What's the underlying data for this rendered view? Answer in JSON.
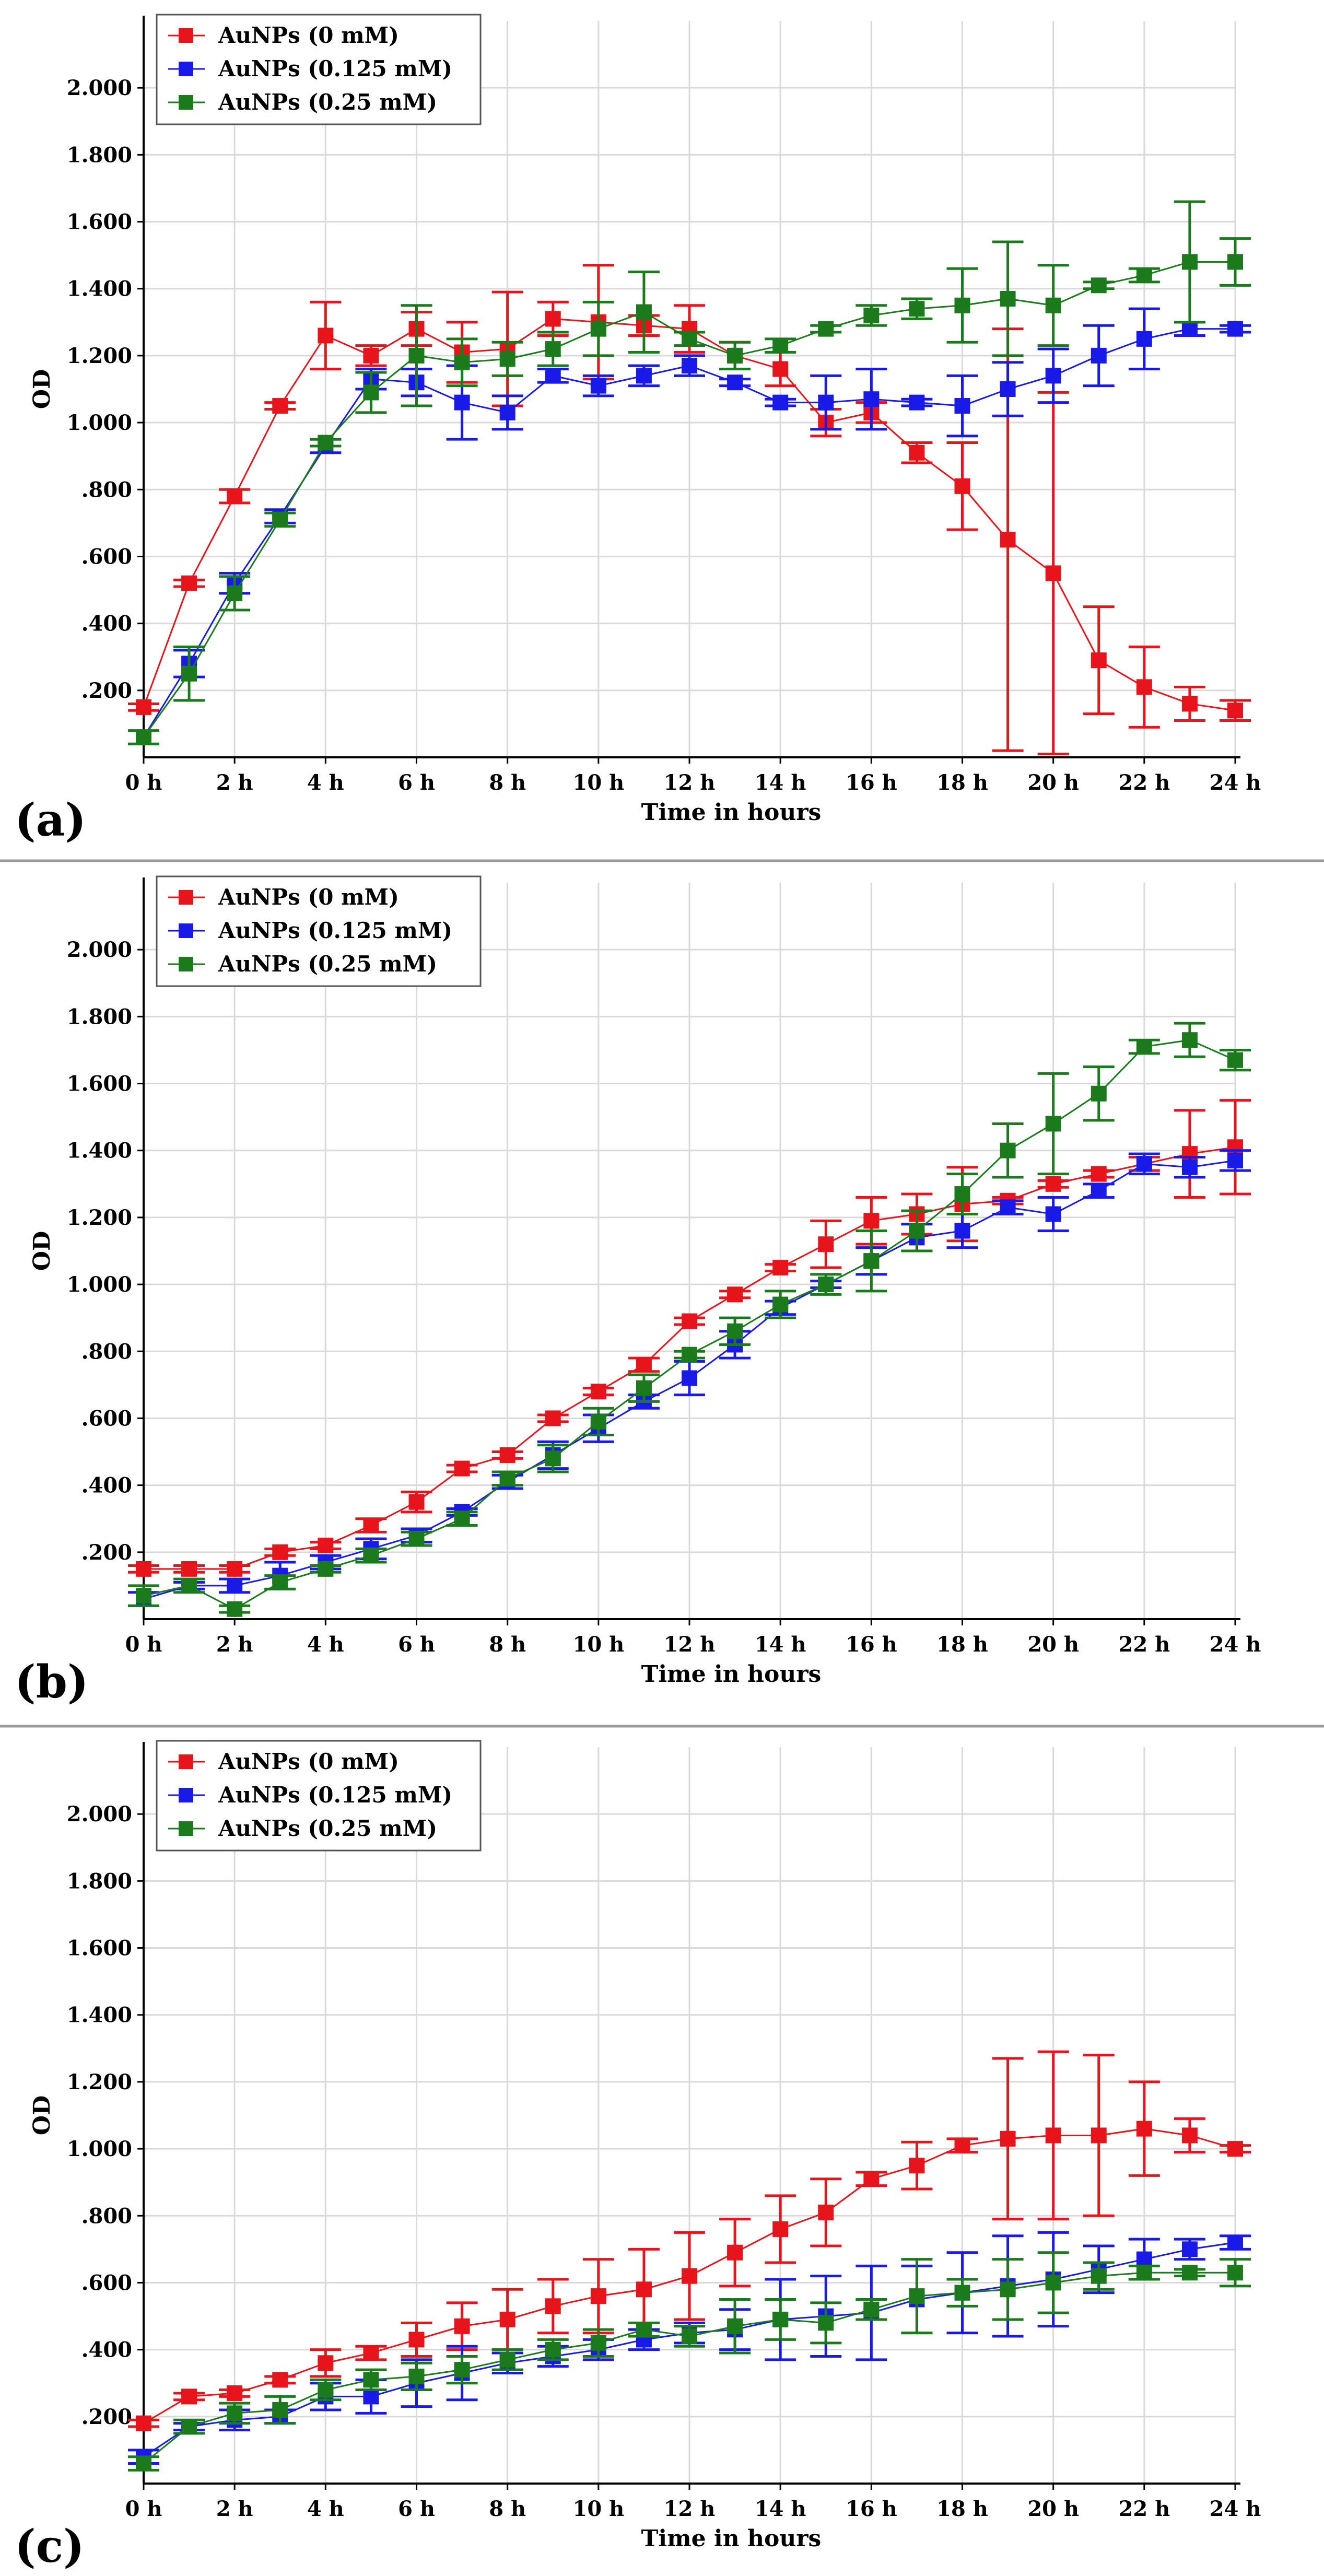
{
  "colors": {
    "s0": "#e8141b",
    "s1": "#1a1ae8",
    "s2": "#1b7a1b",
    "grid": "#d9d9d9",
    "axis": "#000000",
    "separator": "#9a9a9a"
  },
  "chart_data": [
    {
      "type": "line",
      "panel_label": "(a)",
      "xlabel": "Time in hours",
      "ylabel": "OD",
      "ylim": [
        0,
        2.2
      ],
      "yticks": [
        0.2,
        0.4,
        0.6,
        0.8,
        1.0,
        1.2,
        1.4,
        1.6,
        1.8,
        2.0
      ],
      "ytick_labels": [
        ".200",
        ".400",
        ".600",
        ".800",
        "1.000",
        "1.200",
        "1.400",
        "1.600",
        "1.800",
        "2.000"
      ],
      "xticks": [
        0,
        2,
        4,
        6,
        8,
        10,
        12,
        14,
        16,
        18,
        20,
        22,
        24
      ],
      "xtick_labels": [
        "0 h",
        "2 h",
        "4 h",
        "6 h",
        "8 h",
        "10 h",
        "12 h",
        "14 h",
        "16 h",
        "18 h",
        "20 h",
        "22 h",
        "24 h"
      ],
      "legend_position": "top-left",
      "x": [
        0,
        1,
        2,
        3,
        4,
        5,
        6,
        7,
        8,
        9,
        10,
        11,
        12,
        13,
        14,
        15,
        16,
        17,
        18,
        19,
        20,
        21,
        22,
        23,
        24
      ],
      "series": [
        {
          "name": "AuNPs (0 mM)",
          "values": [
            0.15,
            0.52,
            0.78,
            1.05,
            1.26,
            1.2,
            1.28,
            1.21,
            1.22,
            1.31,
            1.3,
            1.29,
            1.28,
            1.2,
            1.16,
            1.0,
            1.03,
            0.91,
            0.81,
            0.65,
            0.55,
            0.29,
            0.21,
            0.16,
            0.14
          ],
          "errors": [
            0.01,
            0.01,
            0.02,
            0.01,
            0.1,
            0.03,
            0.05,
            0.09,
            0.17,
            0.05,
            0.17,
            0.03,
            0.07,
            0.04,
            0.05,
            0.04,
            0.03,
            0.03,
            0.13,
            0.63,
            0.54,
            0.16,
            0.12,
            0.05,
            0.03
          ]
        },
        {
          "name": "AuNPs (0.125 mM)",
          "values": [
            0.06,
            0.28,
            0.52,
            0.72,
            0.93,
            1.13,
            1.12,
            1.06,
            1.03,
            1.14,
            1.11,
            1.14,
            1.17,
            1.12,
            1.06,
            1.06,
            1.07,
            1.06,
            1.05,
            1.1,
            1.14,
            1.2,
            1.25,
            1.28,
            1.28
          ],
          "errors": [
            0.02,
            0.04,
            0.03,
            0.02,
            0.02,
            0.03,
            0.04,
            0.11,
            0.05,
            0.02,
            0.03,
            0.03,
            0.03,
            0.01,
            0.01,
            0.08,
            0.09,
            0.01,
            0.09,
            0.08,
            0.08,
            0.09,
            0.09,
            0.02,
            0.01
          ]
        },
        {
          "name": "AuNPs (0.25 mM)",
          "values": [
            0.06,
            0.25,
            0.49,
            0.71,
            0.94,
            1.09,
            1.2,
            1.18,
            1.19,
            1.22,
            1.28,
            1.33,
            1.25,
            1.2,
            1.23,
            1.28,
            1.32,
            1.34,
            1.35,
            1.37,
            1.35,
            1.41,
            1.44,
            1.48,
            1.48
          ],
          "errors": [
            0.02,
            0.08,
            0.05,
            0.02,
            0.01,
            0.06,
            0.15,
            0.07,
            0.05,
            0.05,
            0.08,
            0.12,
            0.02,
            0.04,
            0.02,
            0.01,
            0.03,
            0.03,
            0.11,
            0.17,
            0.12,
            0.01,
            0.02,
            0.18,
            0.07
          ]
        }
      ]
    },
    {
      "type": "line",
      "panel_label": "(b)",
      "xlabel": "Time in hours",
      "ylabel": "OD",
      "ylim": [
        0,
        2.2
      ],
      "yticks": [
        0.2,
        0.4,
        0.6,
        0.8,
        1.0,
        1.2,
        1.4,
        1.6,
        1.8,
        2.0
      ],
      "ytick_labels": [
        ".200",
        ".400",
        ".600",
        ".800",
        "1.000",
        "1.200",
        "1.400",
        "1.600",
        "1.800",
        "2.000"
      ],
      "xticks": [
        0,
        2,
        4,
        6,
        8,
        10,
        12,
        14,
        16,
        18,
        20,
        22,
        24
      ],
      "xtick_labels": [
        "0 h",
        "2 h",
        "4 h",
        "6 h",
        "8 h",
        "10 h",
        "12 h",
        "14 h",
        "16 h",
        "18 h",
        "20 h",
        "22 h",
        "24 h"
      ],
      "legend_position": "top-left",
      "x": [
        0,
        1,
        2,
        3,
        4,
        5,
        6,
        7,
        8,
        9,
        10,
        11,
        12,
        13,
        14,
        15,
        16,
        17,
        18,
        19,
        20,
        21,
        22,
        23,
        24
      ],
      "series": [
        {
          "name": "AuNPs (0 mM)",
          "values": [
            0.15,
            0.15,
            0.15,
            0.2,
            0.22,
            0.28,
            0.35,
            0.45,
            0.49,
            0.6,
            0.68,
            0.76,
            0.89,
            0.97,
            1.05,
            1.12,
            1.19,
            1.21,
            1.24,
            1.25,
            1.3,
            1.33,
            1.36,
            1.39,
            1.41
          ],
          "errors": [
            0.01,
            0.01,
            0.01,
            0.01,
            0.01,
            0.02,
            0.03,
            0.01,
            0.01,
            0.01,
            0.01,
            0.02,
            0.01,
            0.01,
            0.01,
            0.07,
            0.07,
            0.06,
            0.11,
            0.01,
            0.01,
            0.01,
            0.02,
            0.13,
            0.14
          ]
        },
        {
          "name": "AuNPs (0.125 mM)",
          "values": [
            0.06,
            0.1,
            0.1,
            0.13,
            0.17,
            0.21,
            0.25,
            0.32,
            0.41,
            0.49,
            0.57,
            0.65,
            0.72,
            0.82,
            0.93,
            1.0,
            1.07,
            1.14,
            1.16,
            1.23,
            1.21,
            1.28,
            1.36,
            1.35,
            1.37
          ],
          "errors": [
            0.02,
            0.01,
            0.02,
            0.04,
            0.02,
            0.03,
            0.02,
            0.01,
            0.02,
            0.04,
            0.04,
            0.02,
            0.05,
            0.04,
            0.02,
            0.01,
            0.04,
            0.04,
            0.05,
            0.02,
            0.05,
            0.02,
            0.03,
            0.03,
            0.03
          ]
        },
        {
          "name": "AuNPs (0.25 mM)",
          "values": [
            0.07,
            0.1,
            0.03,
            0.11,
            0.15,
            0.19,
            0.24,
            0.3,
            0.42,
            0.48,
            0.59,
            0.69,
            0.79,
            0.86,
            0.94,
            1.0,
            1.07,
            1.16,
            1.27,
            1.4,
            1.48,
            1.57,
            1.71,
            1.73,
            1.67
          ],
          "errors": [
            0.03,
            0.02,
            0.01,
            0.02,
            0.01,
            0.02,
            0.02,
            0.02,
            0.02,
            0.04,
            0.04,
            0.04,
            0.01,
            0.04,
            0.04,
            0.03,
            0.09,
            0.06,
            0.06,
            0.08,
            0.15,
            0.08,
            0.02,
            0.05,
            0.03
          ]
        }
      ]
    },
    {
      "type": "line",
      "panel_label": "(c)",
      "xlabel": "Time in hours",
      "ylabel": "OD",
      "ylim": [
        0,
        2.2
      ],
      "yticks": [
        0.2,
        0.4,
        0.6,
        0.8,
        1.0,
        1.2,
        1.4,
        1.6,
        1.8,
        2.0
      ],
      "ytick_labels": [
        ".200",
        ".400",
        ".600",
        ".800",
        "1.000",
        "1.200",
        "1.400",
        "1.600",
        "1.800",
        "2.000"
      ],
      "xticks": [
        0,
        2,
        4,
        6,
        8,
        10,
        12,
        14,
        16,
        18,
        20,
        22,
        24
      ],
      "xtick_labels": [
        "0 h",
        "2 h",
        "4 h",
        "6 h",
        "8 h",
        "10 h",
        "12 h",
        "14 h",
        "16 h",
        "18 h",
        "20 h",
        "22 h",
        "24 h"
      ],
      "legend_position": "top-left",
      "x": [
        0,
        1,
        2,
        3,
        4,
        5,
        6,
        7,
        8,
        9,
        10,
        11,
        12,
        13,
        14,
        15,
        16,
        17,
        18,
        19,
        20,
        21,
        22,
        23,
        24
      ],
      "series": [
        {
          "name": "AuNPs (0 mM)",
          "values": [
            0.18,
            0.26,
            0.27,
            0.31,
            0.36,
            0.39,
            0.43,
            0.47,
            0.49,
            0.53,
            0.56,
            0.58,
            0.62,
            0.69,
            0.76,
            0.81,
            0.91,
            0.95,
            1.01,
            1.03,
            1.04,
            1.04,
            1.06,
            1.04,
            1.0
          ],
          "errors": [
            0.01,
            0.01,
            0.01,
            0.01,
            0.04,
            0.02,
            0.05,
            0.07,
            0.09,
            0.08,
            0.11,
            0.12,
            0.13,
            0.1,
            0.1,
            0.1,
            0.02,
            0.07,
            0.02,
            0.24,
            0.25,
            0.24,
            0.14,
            0.05,
            0.01
          ]
        },
        {
          "name": "AuNPs (0.125 mM)",
          "values": [
            0.08,
            0.17,
            0.19,
            0.2,
            0.26,
            0.26,
            0.3,
            0.33,
            0.36,
            0.38,
            0.4,
            0.43,
            0.45,
            0.46,
            0.49,
            0.5,
            0.51,
            0.55,
            0.57,
            0.59,
            0.61,
            0.64,
            0.67,
            0.7,
            0.72
          ],
          "errors": [
            0.02,
            0.01,
            0.03,
            0.02,
            0.04,
            0.05,
            0.07,
            0.08,
            0.03,
            0.03,
            0.03,
            0.03,
            0.03,
            0.06,
            0.12,
            0.12,
            0.14,
            0.1,
            0.12,
            0.15,
            0.14,
            0.07,
            0.06,
            0.03,
            0.02
          ]
        },
        {
          "name": "AuNPs (0.25 mM)",
          "values": [
            0.06,
            0.17,
            0.21,
            0.22,
            0.28,
            0.31,
            0.32,
            0.34,
            0.37,
            0.4,
            0.42,
            0.46,
            0.44,
            0.47,
            0.49,
            0.48,
            0.52,
            0.56,
            0.57,
            0.58,
            0.6,
            0.62,
            0.63,
            0.63,
            0.63
          ],
          "errors": [
            0.02,
            0.02,
            0.03,
            0.04,
            0.03,
            0.03,
            0.04,
            0.04,
            0.03,
            0.03,
            0.04,
            0.02,
            0.03,
            0.08,
            0.06,
            0.06,
            0.03,
            0.11,
            0.04,
            0.09,
            0.09,
            0.04,
            0.02,
            0.01,
            0.04
          ]
        }
      ]
    }
  ]
}
